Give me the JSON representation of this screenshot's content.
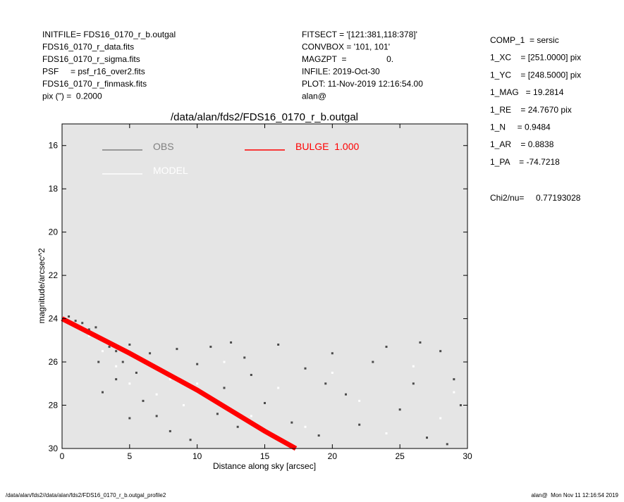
{
  "header": {
    "left": [
      "INITFILE= FDS16_0170_r_b.outgal",
      "FDS16_0170_r_data.fits",
      "FDS16_0170_r_sigma.fits",
      "PSF     = psf_r16_over2.fits",
      "FDS16_0170_r_finmask.fits",
      "pix (\") =  0.2000"
    ],
    "middle": [
      "FITSECT = '[121:381,118:378]'",
      "CONVBOX = '101, 101'",
      "MAGZPT  =                 0.",
      "INFILE: 2019-Oct-30",
      "PLOT: 11-Nov-2019 12:16:54.00",
      "alan@"
    ],
    "right": [
      "COMP_1  = sersic",
      "1_XC    = [251.0000] pix",
      "1_YC    = [248.5000] pix",
      "1_MAG   = 19.2814",
      "1_RE    = 24.7670 pix",
      "1_N     = 0.9484",
      "1_AR    = 0.8838",
      "1_PA    = -74.7218"
    ],
    "chi2": "Chi2/nu=     0.77193028"
  },
  "footer": {
    "left": "/data/alan/fds2//data/alan/fds2/FDS16_0170_r_b.outgal_profile2",
    "right": "alan@  Mon Nov 11 12:16:54 2019"
  },
  "chart_data": {
    "type": "scatter",
    "title": "/data/alan/fds2/FDS16_0170_r_b.outgal",
    "x_label": "Distance along sky [arcsec]",
    "y_label": "magnitude/arcsec^2",
    "xlim": [
      0,
      30
    ],
    "ylim": [
      30,
      15
    ],
    "xticks": [
      0,
      5,
      10,
      15,
      20,
      25,
      30
    ],
    "yticks": [
      16,
      18,
      20,
      22,
      24,
      26,
      28,
      30
    ],
    "series": [
      {
        "name": "OBS",
        "color": "#808080",
        "point_color": "#4a4a4a",
        "kind": "points",
        "x": [
          0.5,
          1,
          1.5,
          2,
          2.5,
          3,
          3.5,
          4,
          4.5,
          5,
          5.5,
          6,
          6.5,
          7,
          7.5,
          8,
          8.5,
          9,
          9.5,
          10,
          11,
          11.5,
          12,
          13,
          13.5,
          14,
          15,
          16,
          17,
          18,
          19,
          20,
          21,
          22,
          23,
          24,
          25,
          26,
          27,
          28,
          29,
          29.5,
          3,
          2.7,
          4,
          5,
          12.5,
          19.5,
          26.5,
          28.5
        ],
        "values": [
          23.9,
          24.1,
          24.2,
          24.5,
          24.4,
          25.0,
          25.3,
          25.5,
          26.0,
          25.2,
          26.5,
          27.8,
          25.6,
          28.5,
          26.4,
          29.2,
          25.4,
          27.0,
          29.6,
          26.1,
          25.3,
          28.4,
          27.2,
          29.0,
          25.8,
          26.6,
          27.9,
          25.2,
          28.8,
          26.3,
          29.4,
          25.6,
          27.5,
          28.9,
          26.0,
          25.3,
          28.2,
          27.0,
          29.5,
          25.5,
          26.8,
          28.0,
          27.4,
          26.0,
          26.8,
          28.6,
          25.1,
          27.0,
          25.1,
          29.8
        ]
      },
      {
        "name": "MODEL",
        "color": "#ffffff",
        "point_color": "#ffffff",
        "kind": "points",
        "x": [
          1,
          2,
          3,
          4,
          5,
          6,
          7,
          8,
          9,
          10,
          12,
          14,
          16,
          18,
          20,
          22,
          24,
          26,
          28,
          29
        ],
        "values": [
          24.3,
          24.8,
          25.5,
          26.2,
          27.0,
          26.0,
          27.5,
          26.8,
          28.0,
          27.0,
          26.0,
          28.5,
          27.2,
          29.0,
          26.5,
          27.8,
          29.3,
          26.2,
          28.6,
          27.4
        ]
      },
      {
        "name": "BULGE  1.000",
        "color": "#ff0000",
        "point_color": "#ff0000",
        "kind": "line",
        "x": [
          0,
          5,
          10,
          15,
          17.3
        ],
        "values": [
          24.0,
          25.6,
          27.3,
          29.2,
          30
        ]
      }
    ]
  }
}
